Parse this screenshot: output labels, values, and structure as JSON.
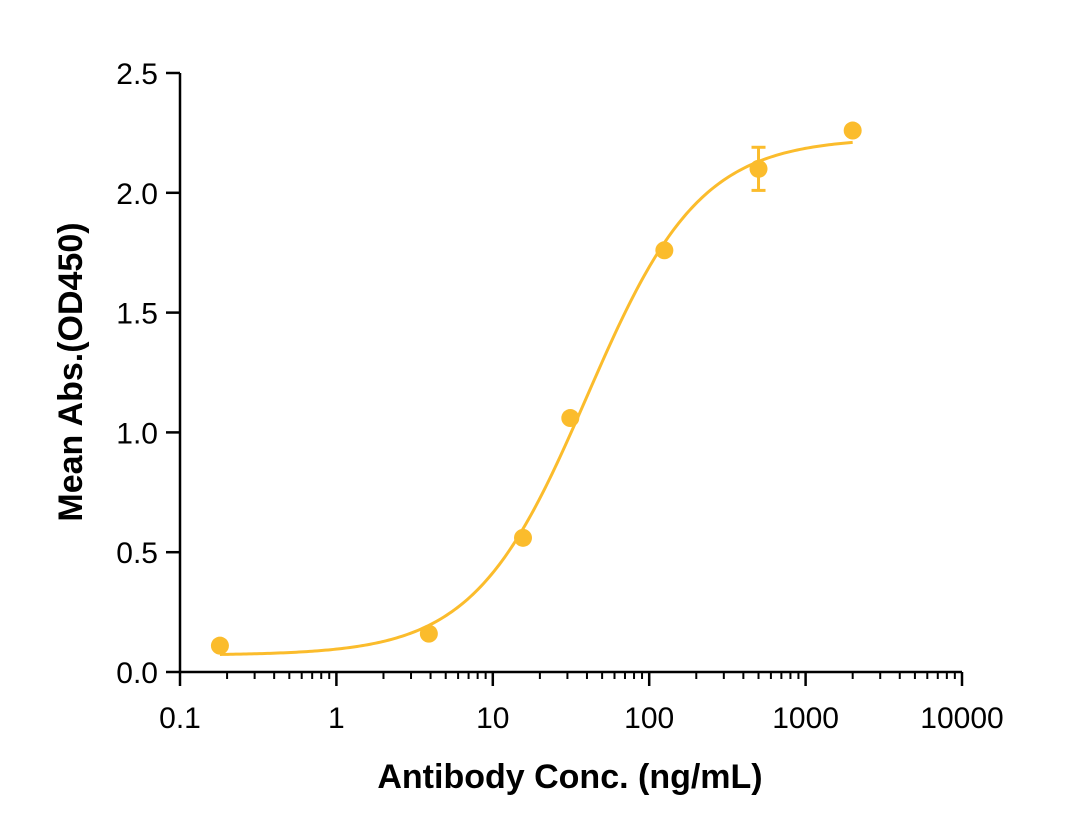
{
  "chart_data": {
    "type": "scatter",
    "title": "",
    "xlabel": "Antibody Conc. (ng/mL)",
    "ylabel": "Mean Abs.(OD450)",
    "x_scale": "log",
    "xlim": [
      0.1,
      10000
    ],
    "ylim": [
      0,
      2.5
    ],
    "x_ticks": [
      0.1,
      1,
      10,
      100,
      1000,
      10000
    ],
    "x_tick_labels": [
      "0.1",
      "1",
      "10",
      "100",
      "1000",
      "10000"
    ],
    "y_ticks": [
      0,
      0.5,
      1,
      1.5,
      2,
      2.5
    ],
    "y_tick_labels": [
      "0.0",
      "0.5",
      "1.0",
      "1.5",
      "2.0",
      "2.5"
    ],
    "grid": false,
    "legend": "none",
    "color": "#FBBC2C",
    "series": [
      {
        "points": [
          {
            "x": 0.18,
            "y": 0.11
          },
          {
            "x": 3.9,
            "y": 0.16
          },
          {
            "x": 15.6,
            "y": 0.56
          },
          {
            "x": 31.3,
            "y": 1.06
          },
          {
            "x": 125,
            "y": 1.76
          },
          {
            "x": 500,
            "y": 2.1,
            "error": 0.09
          },
          {
            "x": 2000,
            "y": 2.26
          }
        ],
        "fit": {
          "model": "4PL",
          "bottom": 0.07,
          "top": 2.23,
          "ec50": 40,
          "hill": 1.2,
          "x_range": [
            0.18,
            2000
          ]
        }
      }
    ]
  }
}
